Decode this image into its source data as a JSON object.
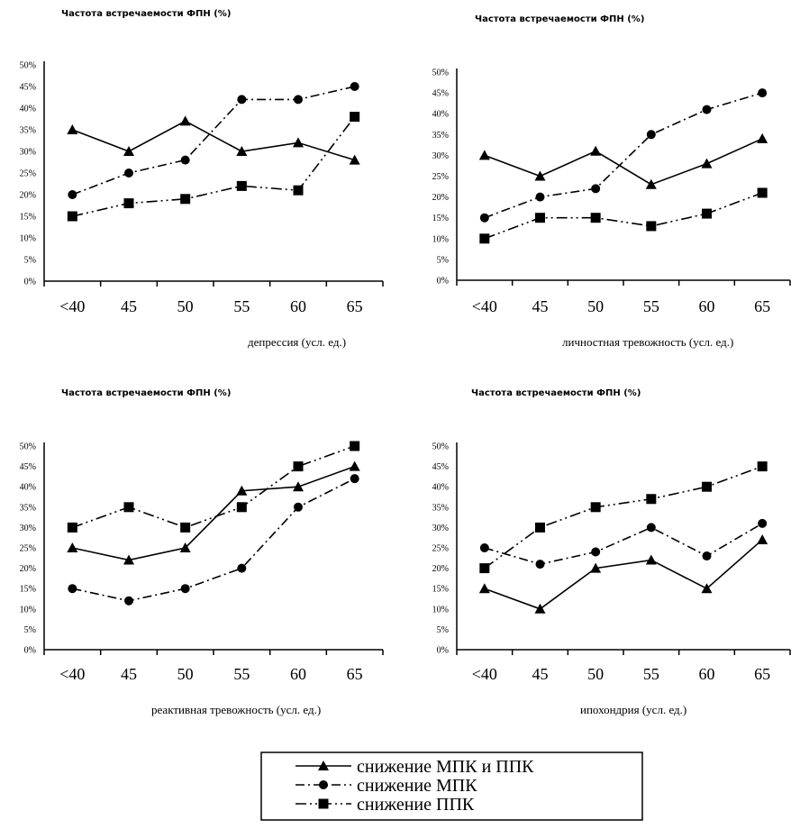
{
  "chart_data": [
    {
      "type": "line",
      "title": "Частота встречаемости ФПН (%)",
      "xlabel": "депрессия (усл. ед.)",
      "ylabel": "",
      "categories": [
        "<40",
        "45",
        "50",
        "55",
        "60",
        "65"
      ],
      "ylim": [
        0,
        50
      ],
      "yticks": [
        "0%",
        "5%",
        "10%",
        "15%",
        "20%",
        "25%",
        "30%",
        "35%",
        "40%",
        "45%",
        "50%"
      ],
      "series": [
        {
          "name": "снижение МПК и ППК",
          "marker": "triangle",
          "values": [
            35,
            30,
            37,
            30,
            32,
            28
          ]
        },
        {
          "name": "снижение МПК",
          "marker": "circle",
          "values": [
            20,
            25,
            28,
            42,
            42,
            45
          ]
        },
        {
          "name": "снижение ППК",
          "marker": "square",
          "values": [
            15,
            18,
            19,
            22,
            21,
            38
          ]
        }
      ]
    },
    {
      "type": "line",
      "title": "Частота встречаемости ФПН (%)",
      "xlabel": "личностная тревожность (усл. ед.)",
      "ylabel": "",
      "categories": [
        "<40",
        "45",
        "50",
        "55",
        "60",
        "65"
      ],
      "ylim": [
        0,
        50
      ],
      "yticks": [
        "0%",
        "5%",
        "10%",
        "15%",
        "20%",
        "25%",
        "30%",
        "35%",
        "40%",
        "45%",
        "50%"
      ],
      "series": [
        {
          "name": "снижение МПК и ППК",
          "marker": "triangle",
          "values": [
            30,
            25,
            31,
            23,
            28,
            34
          ]
        },
        {
          "name": "снижение МПК",
          "marker": "circle",
          "values": [
            15,
            20,
            22,
            35,
            41,
            45
          ]
        },
        {
          "name": "снижение ППК",
          "marker": "square",
          "values": [
            10,
            15,
            15,
            13,
            16,
            21
          ]
        }
      ]
    },
    {
      "type": "line",
      "title": "Частота встречаемости ФПН (%)",
      "xlabel": "реактивная тревожность (усл. ед.)",
      "ylabel": "",
      "categories": [
        "<40",
        "45",
        "50",
        "55",
        "60",
        "65"
      ],
      "ylim": [
        0,
        50
      ],
      "yticks": [
        "0%",
        "5%",
        "10%",
        "15%",
        "20%",
        "25%",
        "30%",
        "35%",
        "40%",
        "45%",
        "50%"
      ],
      "series": [
        {
          "name": "снижение МПК и ППК",
          "marker": "triangle",
          "values": [
            25,
            22,
            25,
            39,
            40,
            45
          ]
        },
        {
          "name": "снижение МПК",
          "marker": "circle",
          "values": [
            15,
            12,
            15,
            20,
            35,
            42
          ]
        },
        {
          "name": "снижение ППК",
          "marker": "square",
          "values": [
            30,
            35,
            30,
            35,
            45,
            50
          ]
        }
      ]
    },
    {
      "type": "line",
      "title": "Частота встречаемости ФПН (%)",
      "xlabel": "ипохондрия (усл. ед.)",
      "ylabel": "",
      "categories": [
        "<40",
        "45",
        "50",
        "55",
        "60",
        "65"
      ],
      "ylim": [
        0,
        50
      ],
      "yticks": [
        "0%",
        "5%",
        "10%",
        "15%",
        "20%",
        "25%",
        "30%",
        "35%",
        "40%",
        "45%",
        "50%"
      ],
      "series": [
        {
          "name": "снижение МПК и ППК",
          "marker": "triangle",
          "values": [
            15,
            10,
            20,
            22,
            15,
            27
          ]
        },
        {
          "name": "снижение МПК",
          "marker": "circle",
          "values": [
            25,
            21,
            24,
            30,
            23,
            31
          ]
        },
        {
          "name": "снижение ППК",
          "marker": "square",
          "values": [
            20,
            30,
            35,
            37,
            40,
            45
          ]
        }
      ]
    }
  ],
  "legend": {
    "placement": "bottom-center",
    "items": [
      {
        "label": "снижение МПК и ППК",
        "marker": "triangle"
      },
      {
        "label": "снижение МПК",
        "marker": "circle"
      },
      {
        "label": "снижение ППК",
        "marker": "square"
      }
    ]
  }
}
